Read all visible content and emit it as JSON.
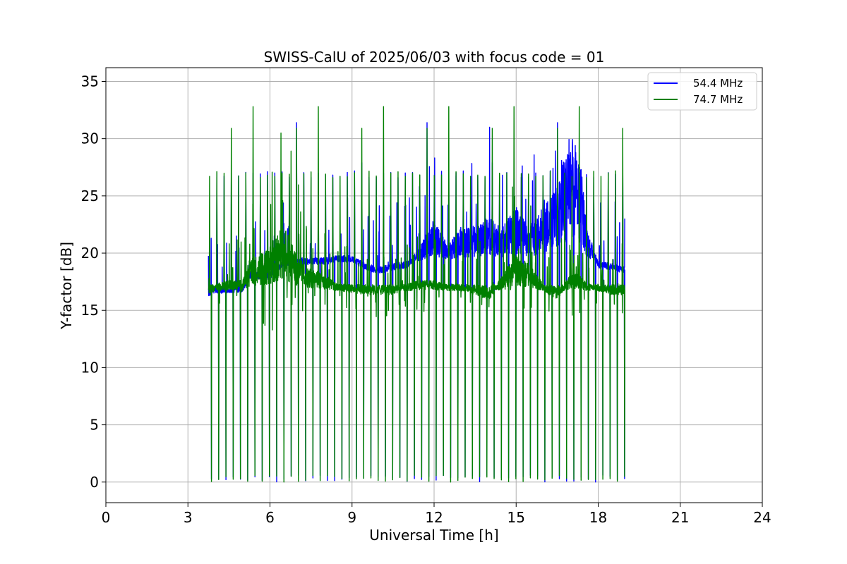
{
  "chart_data": {
    "type": "line",
    "title": "SWISS-CalU of 2025/06/03 with focus code = 01",
    "xlabel": "Universal Time [h]",
    "ylabel": "Y-factor [dB]",
    "xlim": [
      0,
      24
    ],
    "ylim": [
      -1.8,
      36.2
    ],
    "grid": true,
    "legend_position": "top-right",
    "xticks": [
      0,
      3,
      6,
      9,
      12,
      15,
      18,
      21,
      24
    ],
    "xtick_labels": [
      "0",
      "3",
      "6",
      "9",
      "12",
      "15",
      "18",
      "21",
      "24"
    ],
    "yticks": [
      0,
      5,
      10,
      15,
      20,
      25,
      30,
      35
    ],
    "ytick_labels": [
      "0",
      "5",
      "10",
      "15",
      "20",
      "25",
      "30",
      "35"
    ],
    "series": [
      {
        "name": "54.4 MHz",
        "color": "#0000ff",
        "time_range": [
          3.75,
          18.97
        ],
        "x": [
          3.75,
          4.0,
          4.5,
          5.0,
          5.3,
          5.6,
          6.0,
          6.5,
          7.0,
          7.5,
          8.0,
          8.5,
          9.0,
          9.5,
          10.0,
          10.5,
          11.0,
          11.5,
          12.0,
          12.5,
          13.0,
          13.5,
          14.0,
          14.5,
          15.0,
          15.5,
          16.0,
          16.5,
          17.0,
          17.3,
          17.6,
          18.0,
          18.5,
          18.97
        ],
        "values": [
          16.5,
          16.8,
          16.8,
          16.9,
          18.2,
          18.0,
          18.0,
          19.2,
          19.3,
          19.3,
          19.3,
          19.5,
          19.5,
          18.8,
          18.5,
          18.8,
          19.0,
          20.0,
          21.5,
          20.0,
          21.0,
          21.0,
          21.5,
          21.0,
          22.0,
          21.0,
          22.0,
          23.0,
          26.0,
          25.0,
          21.0,
          19.0,
          18.8,
          18.5
        ],
        "spikes_max": [
          18.0,
          21.0,
          27.7,
          27.9,
          27.0,
          27.0,
          27.0,
          27.0,
          27.0,
          27.0,
          27.0,
          30.0,
          31.4,
          28.0,
          29.0,
          27.0,
          29.0,
          32.4
        ],
        "dip_min": 0.0
      },
      {
        "name": "74.7 MHz",
        "color": "#008000",
        "time_range": [
          3.75,
          18.97
        ],
        "x": [
          3.75,
          4.0,
          4.5,
          5.0,
          5.3,
          5.6,
          6.0,
          6.5,
          7.0,
          7.5,
          8.0,
          8.5,
          9.0,
          9.5,
          10.0,
          10.5,
          11.0,
          11.5,
          12.0,
          12.5,
          13.0,
          13.5,
          14.0,
          14.5,
          15.0,
          15.5,
          16.0,
          16.5,
          17.0,
          17.3,
          17.6,
          18.0,
          18.5,
          18.97
        ],
        "values": [
          16.8,
          17.0,
          17.2,
          17.2,
          18.5,
          18.5,
          19.0,
          20.0,
          18.5,
          17.8,
          17.5,
          17.0,
          16.9,
          16.8,
          16.8,
          16.8,
          17.0,
          17.2,
          17.2,
          17.0,
          17.0,
          16.8,
          16.5,
          17.5,
          18.5,
          18.0,
          17.0,
          16.5,
          17.5,
          17.5,
          17.0,
          17.0,
          16.8,
          16.8
        ],
        "spikes_max": [
          26.7,
          33.7,
          27.0,
          30.9,
          32.9,
          30.1,
          32.8,
          32.0,
          34.5
        ],
        "dip_min": 0.0
      }
    ]
  }
}
